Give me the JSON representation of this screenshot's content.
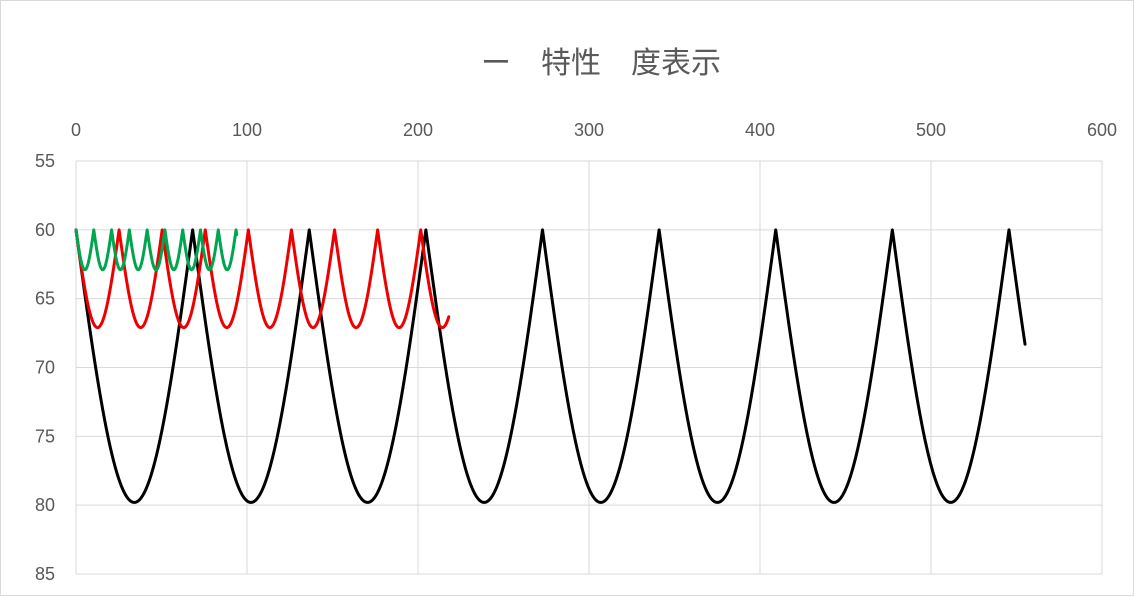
{
  "chart_data": {
    "type": "line",
    "title": "ー　特性　度表示",
    "xlabel": "",
    "ylabel": "",
    "x_axis_position": "top",
    "y_axis_reversed": true,
    "xlim": [
      0,
      600
    ],
    "ylim": [
      55,
      85
    ],
    "x_ticks": [
      0,
      100,
      200,
      300,
      400,
      500,
      600
    ],
    "y_ticks": [
      55,
      60,
      65,
      70,
      75,
      80,
      85
    ],
    "grid": true,
    "legend": "none",
    "series": [
      {
        "color": "#000000",
        "period": 68.2,
        "y_top": 60,
        "y_bottom": 79.8,
        "x_start": 0,
        "x_end": 555
      },
      {
        "color": "#ee0000",
        "period": 25.2,
        "y_top": 60,
        "y_bottom": 67.1,
        "x_start": 0,
        "x_end": 218
      },
      {
        "color": "#00a550",
        "period": 10.4,
        "y_top": 60,
        "y_bottom": 62.9,
        "x_start": 0,
        "x_end": 94
      }
    ]
  }
}
